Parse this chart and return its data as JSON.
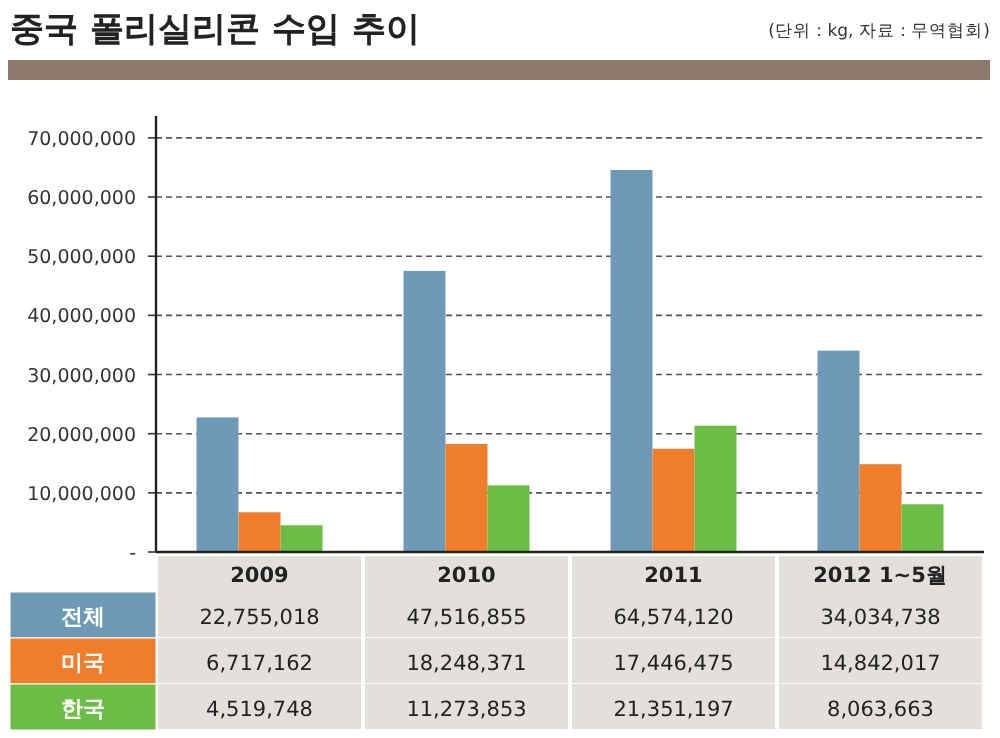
{
  "chart_data": {
    "type": "bar",
    "title": "중국 폴리실리콘 수입 추이",
    "annotations": [
      "(단위 : kg, 자료 : 무역협회)"
    ],
    "categories": [
      "2009",
      "2010",
      "2011",
      "2012 1~5월"
    ],
    "series": [
      {
        "name": "전체",
        "color": "#6e9ab5",
        "values": [
          22755018,
          47516855,
          64574120,
          34034738
        ],
        "value_labels": [
          "22,755,018",
          "47,516,855",
          "64,574,120",
          "34,034,738"
        ]
      },
      {
        "name": "미국",
        "color": "#f07d2a",
        "values": [
          6717162,
          18248371,
          17446475,
          14842017
        ],
        "value_labels": [
          "6,717,162",
          "18,248,371",
          "17,446,475",
          "14,842,017"
        ]
      },
      {
        "name": "한국",
        "color": "#6cbd45",
        "values": [
          4519748,
          11273853,
          21351197,
          8063663
        ],
        "value_labels": [
          "4,519,748",
          "11,273,853",
          "21,351,197",
          "8,063,663"
        ]
      }
    ],
    "ylim": [
      0,
      73700000
    ],
    "yticks": [
      {
        "value": 0,
        "label": "-"
      },
      {
        "value": 10000000,
        "label": "10,000,000"
      },
      {
        "value": 20000000,
        "label": "20,000,000"
      },
      {
        "value": 30000000,
        "label": "30,000,000"
      },
      {
        "value": 40000000,
        "label": "40,000,000"
      },
      {
        "value": 50000000,
        "label": "50,000,000"
      },
      {
        "value": 60000000,
        "label": "60,000,000"
      },
      {
        "value": 70000000,
        "label": "70,000,000"
      }
    ],
    "grid": "y",
    "legend": "bottom"
  }
}
